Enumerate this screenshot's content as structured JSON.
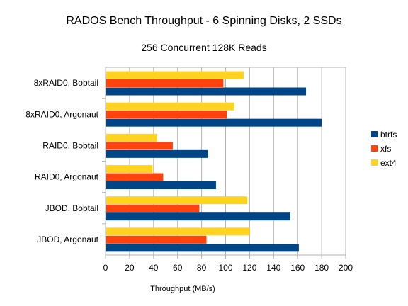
{
  "chart_data": {
    "type": "bar",
    "orientation": "horizontal",
    "title": "RADOS Bench Throughput - 6 Spinning Disks, 2 SSDs",
    "subtitle": "256 Concurrent 128K Reads",
    "xlabel": "Throughput (MB/s)",
    "ylabel": "",
    "xlim": [
      0,
      200
    ],
    "x_ticks": [
      0,
      20,
      40,
      60,
      80,
      100,
      120,
      140,
      160,
      180,
      200
    ],
    "grid": true,
    "legend_position": "right",
    "categories": [
      "8xRAID0, Bobtail",
      "8xRAID0, Argonaut",
      "RAID0, Bobtail",
      "RAID0, Argonaut",
      "JBOD, Bobtail",
      "JBOD, Argonaut"
    ],
    "series": [
      {
        "name": "btrfs",
        "color": "#004586",
        "values": [
          167,
          180,
          85,
          92,
          154,
          161
        ]
      },
      {
        "name": "xfs",
        "color": "#ff420e",
        "values": [
          98,
          101,
          56,
          48,
          78,
          84
        ]
      },
      {
        "name": "ext4",
        "color": "#ffd320",
        "values": [
          115,
          107,
          43,
          39,
          118,
          120
        ]
      }
    ]
  }
}
